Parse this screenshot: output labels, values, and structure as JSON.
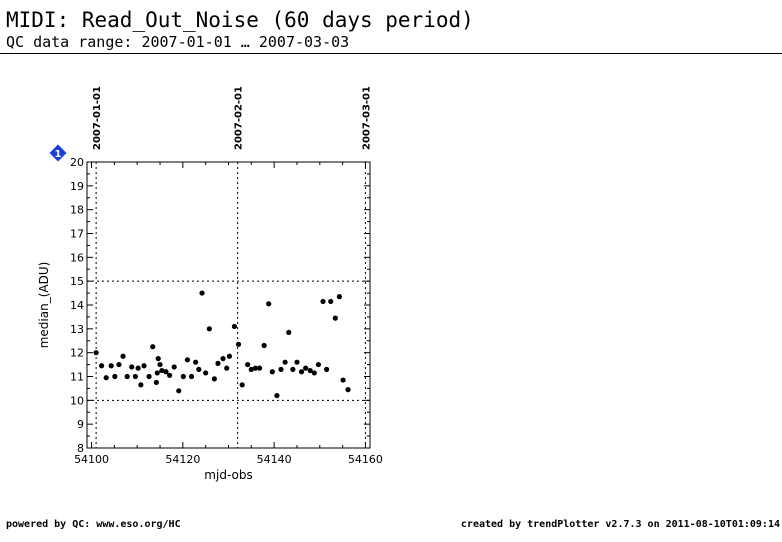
{
  "header": {
    "title": "MIDI: Read_Out_Noise (60 days period)",
    "subtitle": "QC data range: 2007-01-01 … 2007-03-03"
  },
  "footer": {
    "left": "powered by QC: www.eso.org/HC",
    "right": "created by trendPlotter v2.7.3 on 2011-08-10T01:09:14"
  },
  "badge": {
    "label": "1",
    "color": "#1a3fd6"
  },
  "chart_data": {
    "type": "scatter",
    "xlabel": "mjd-obs",
    "ylabel": "median_(ADU)",
    "xlim": [
      54099,
      54161
    ],
    "ylim": [
      8,
      20
    ],
    "xticks": [
      54100,
      54120,
      54140,
      54160
    ],
    "yticks": [
      8,
      9,
      10,
      11,
      12,
      13,
      14,
      15,
      16,
      17,
      18,
      19,
      20
    ],
    "hlines": [
      10,
      15
    ],
    "date_markers": [
      {
        "label": "2007-01-01",
        "x": 54101
      },
      {
        "label": "2007-02-01",
        "x": 54132
      },
      {
        "label": "2007-03-01",
        "x": 54160
      }
    ],
    "points": [
      [
        54101.0,
        12.0
      ],
      [
        54102.2,
        11.45
      ],
      [
        54103.2,
        10.95
      ],
      [
        54104.3,
        11.45
      ],
      [
        54105.1,
        11.0
      ],
      [
        54106.0,
        11.5
      ],
      [
        54106.9,
        11.85
      ],
      [
        54107.8,
        11.0
      ],
      [
        54108.8,
        11.4
      ],
      [
        54109.6,
        11.0
      ],
      [
        54110.2,
        11.35
      ],
      [
        54110.8,
        10.65
      ],
      [
        54111.5,
        11.45
      ],
      [
        54112.6,
        11.0
      ],
      [
        54113.4,
        12.25
      ],
      [
        54114.2,
        10.75
      ],
      [
        54114.4,
        11.15
      ],
      [
        54114.6,
        11.75
      ],
      [
        54115.0,
        11.5
      ],
      [
        54115.4,
        11.25
      ],
      [
        54116.3,
        11.2
      ],
      [
        54117.1,
        11.05
      ],
      [
        54118.1,
        11.4
      ],
      [
        54119.1,
        10.4
      ],
      [
        54120.1,
        11.0
      ],
      [
        54121.0,
        11.7
      ],
      [
        54121.9,
        11.0
      ],
      [
        54122.8,
        11.6
      ],
      [
        54123.5,
        11.3
      ],
      [
        54124.2,
        14.5
      ],
      [
        54125.0,
        11.15
      ],
      [
        54125.8,
        13.0
      ],
      [
        54126.9,
        10.9
      ],
      [
        54127.7,
        11.55
      ],
      [
        54128.8,
        11.75
      ],
      [
        54129.6,
        11.35
      ],
      [
        54130.2,
        11.85
      ],
      [
        54131.3,
        13.1
      ],
      [
        54132.2,
        12.35
      ],
      [
        54133.0,
        10.65
      ],
      [
        54134.2,
        11.5
      ],
      [
        54135.0,
        11.3
      ],
      [
        54135.9,
        11.35
      ],
      [
        54136.8,
        11.35
      ],
      [
        54137.8,
        12.3
      ],
      [
        54138.8,
        14.05
      ],
      [
        54139.6,
        11.2
      ],
      [
        54140.6,
        10.2
      ],
      [
        54141.5,
        11.3
      ],
      [
        54142.4,
        11.6
      ],
      [
        54143.2,
        12.85
      ],
      [
        54144.1,
        11.3
      ],
      [
        54145.0,
        11.6
      ],
      [
        54146.0,
        11.2
      ],
      [
        54146.9,
        11.35
      ],
      [
        54147.9,
        11.25
      ],
      [
        54148.8,
        11.15
      ],
      [
        54149.7,
        11.5
      ],
      [
        54150.7,
        14.15
      ],
      [
        54151.5,
        11.3
      ],
      [
        54152.4,
        14.15
      ],
      [
        54153.4,
        13.45
      ],
      [
        54154.3,
        14.35
      ],
      [
        54155.1,
        10.85
      ],
      [
        54156.2,
        10.45
      ]
    ]
  }
}
